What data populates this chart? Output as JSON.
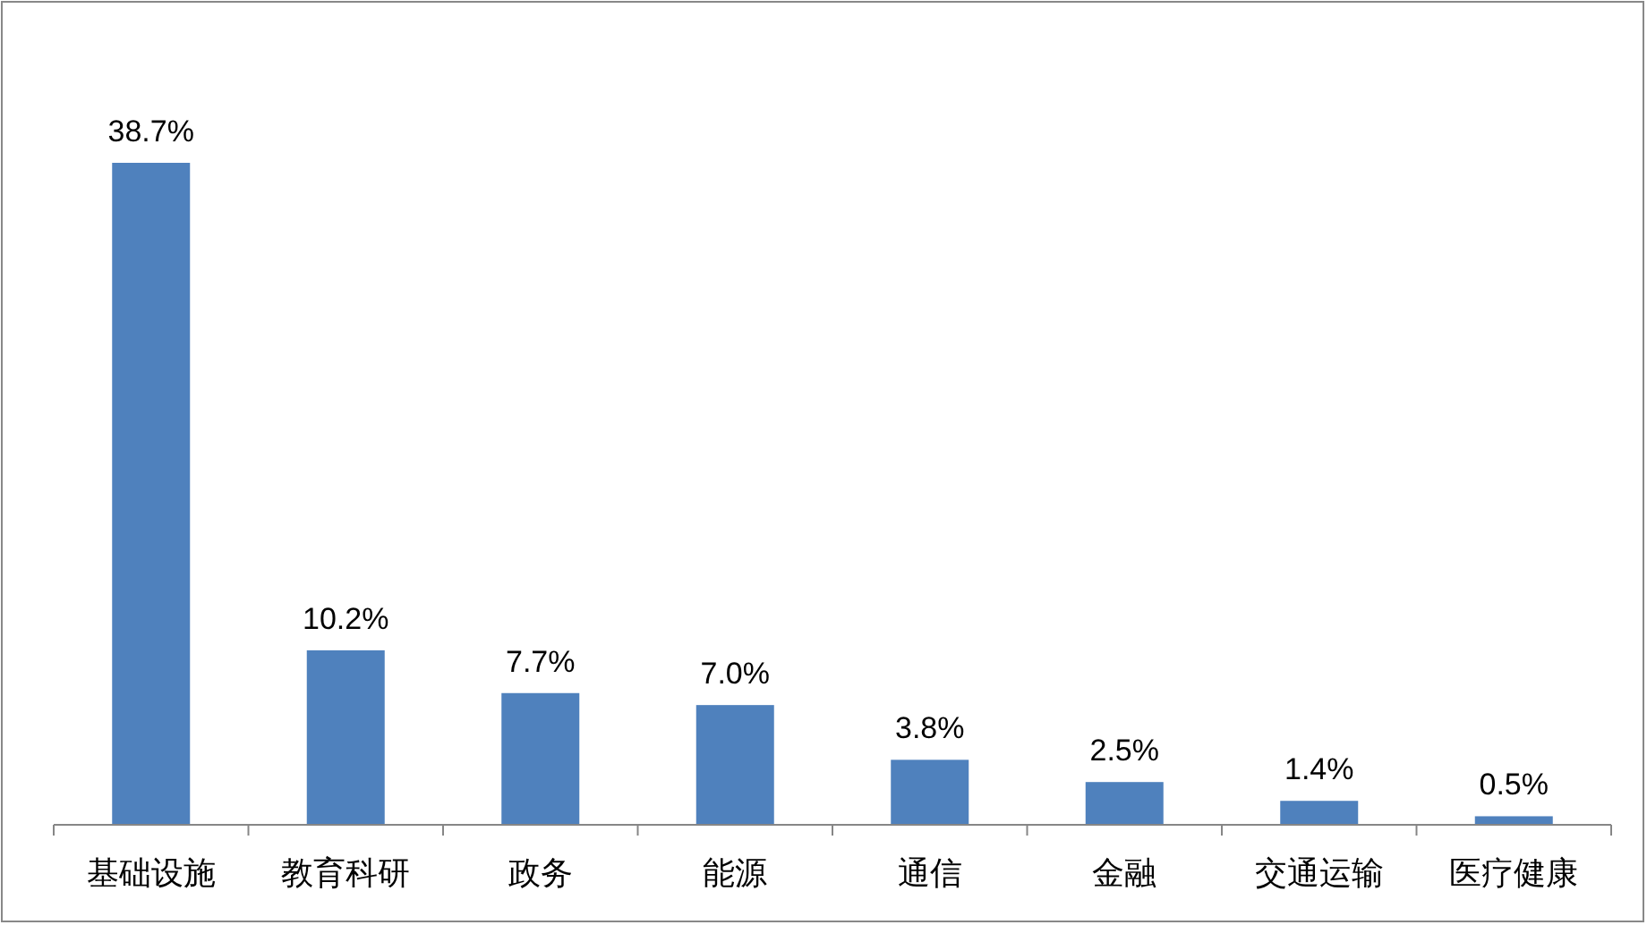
{
  "chart_data": {
    "type": "bar",
    "categories": [
      "基础设施",
      "教育科研",
      "政务",
      "能源",
      "通信",
      "金融",
      "交通运输",
      "医疗健康"
    ],
    "values": [
      38.7,
      10.2,
      7.7,
      7.0,
      3.8,
      2.5,
      1.4,
      0.5
    ],
    "value_labels": [
      "38.7%",
      "10.2%",
      "7.7%",
      "7.0%",
      "3.8%",
      "2.5%",
      "1.4%",
      "0.5%"
    ],
    "color": "#4f81bd"
  }
}
